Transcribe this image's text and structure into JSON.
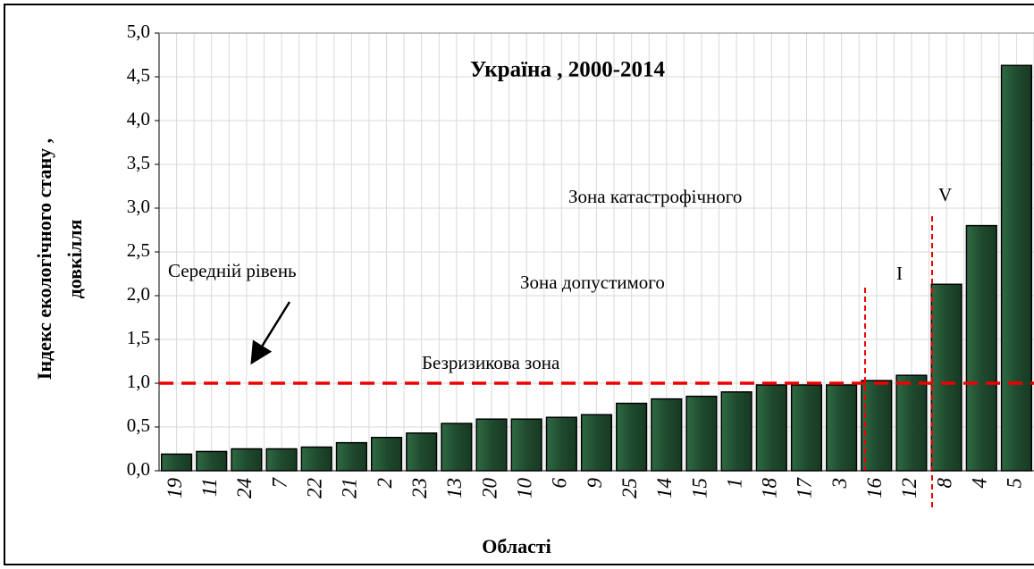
{
  "chart_data": {
    "type": "bar",
    "title": "Україна , 2000-2014",
    "y_label_line1": "Індекс  екологічного стану  ,",
    "y_label_line2": "довкілля",
    "x_label": "Області",
    "annotations": [
      "Зона катастрофічного",
      "V",
      "Середній рівень",
      "Зона допустимого",
      "I",
      "Безризикова зона"
    ],
    "categories": [
      "19",
      "11",
      "24",
      "7",
      "22",
      "21",
      "2",
      "23",
      "13",
      "20",
      "10",
      "6",
      "9",
      "25",
      "14",
      "15",
      "1",
      "18",
      "17",
      "3",
      "16",
      "12",
      "8",
      "4",
      "5"
    ],
    "values": [
      0.19,
      0.22,
      0.25,
      0.25,
      0.27,
      0.32,
      0.38,
      0.43,
      0.54,
      0.59,
      0.59,
      0.61,
      0.64,
      0.77,
      0.82,
      0.85,
      0.9,
      0.98,
      0.98,
      0.98,
      1.03,
      1.09,
      2.13,
      2.8,
      4.63
    ],
    "color": "#1f4a2e",
    "reference_line": 1.0,
    "ylim": [
      0,
      5
    ],
    "yticks": [
      {
        "value": 0,
        "label": "0,0"
      },
      {
        "value": 0.5,
        "label": "0,5"
      },
      {
        "value": 1,
        "label": "1,0"
      },
      {
        "value": 1.5,
        "label": "1,5"
      },
      {
        "value": 2,
        "label": "2,0"
      },
      {
        "value": 2.5,
        "label": "2,5"
      },
      {
        "value": 3,
        "label": "3,0"
      },
      {
        "value": 3.5,
        "label": "3,5"
      },
      {
        "value": 4,
        "label": "4,0"
      },
      {
        "value": 4.5,
        "label": "4,5"
      },
      {
        "value": 5,
        "label": "5,0"
      }
    ],
    "grid": true
  }
}
